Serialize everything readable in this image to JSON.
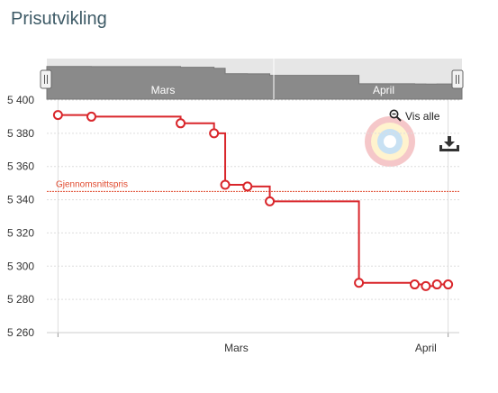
{
  "page": {
    "title": "Prisutvikling"
  },
  "controls": {
    "vis_alle_label": "Vis alle"
  },
  "icons": {
    "zoom": "zoom-out-icon",
    "download": "download-icon"
  },
  "navigator": {
    "labels": [
      "Mars",
      "April"
    ]
  },
  "colors": {
    "series": "#d9262b",
    "average": "#e04a2f",
    "grid": "#dddddd",
    "navigator_fill": "#8a8a8a",
    "navigator_bg": "#e6e6e6",
    "title": "#3d5a66"
  },
  "chart_data": {
    "type": "line",
    "step": true,
    "title": "",
    "xlabel": "",
    "ylabel": "",
    "x_ticks": [
      "Mars",
      "April"
    ],
    "y_ticks": [
      "5 260",
      "5 280",
      "5 300",
      "5 320",
      "5 340",
      "5 360",
      "5 380",
      "5 400"
    ],
    "ylim": [
      5260,
      5400
    ],
    "grid": true,
    "series": [
      {
        "name": "",
        "x": [
          "2024-02-25",
          "2024-02-28",
          "2024-03-07",
          "2024-03-10",
          "2024-03-11",
          "2024-03-13",
          "2024-03-15",
          "2024-03-23",
          "2024-03-28",
          "2024-03-29",
          "2024-03-30",
          "2024-03-31"
        ],
        "y": [
          5391,
          5390,
          5386,
          5380,
          5349,
          5348,
          5339,
          5290,
          5289,
          5288,
          5289,
          5289
        ]
      }
    ],
    "average": {
      "label": "Gjennomsnittspris",
      "value": 5345
    }
  }
}
